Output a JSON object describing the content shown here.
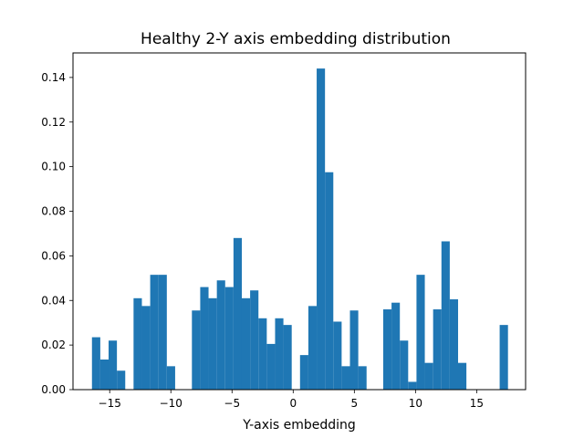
{
  "chart_data": {
    "type": "bar",
    "title": "Healthy 2-Y axis embedding distribution",
    "xlabel": "Y-axis embedding",
    "ylabel": "",
    "xlim": [
      -18.0,
      19.0
    ],
    "ylim": [
      0,
      0.151
    ],
    "xticks": [
      -15,
      -10,
      -5,
      0,
      5,
      10,
      15
    ],
    "xtick_labels": [
      "−15",
      "−10",
      "−5",
      "0",
      "5",
      "10",
      "15"
    ],
    "yticks": [
      0.0,
      0.02,
      0.04,
      0.06,
      0.08,
      0.1,
      0.12,
      0.14
    ],
    "ytick_labels": [
      "0.00",
      "0.02",
      "0.04",
      "0.06",
      "0.08",
      "0.10",
      "0.12",
      "0.14"
    ],
    "grid": false,
    "bar_color": "#1f77b4",
    "bin_width": 0.68,
    "bins": [
      {
        "x0": -16.45,
        "value": 0.0235
      },
      {
        "x0": -15.77,
        "value": 0.0135
      },
      {
        "x0": -15.09,
        "value": 0.022
      },
      {
        "x0": -14.41,
        "value": 0.0085
      },
      {
        "x0": -13.05,
        "value": 0.041
      },
      {
        "x0": -12.37,
        "value": 0.0375
      },
      {
        "x0": -11.69,
        "value": 0.0515
      },
      {
        "x0": -11.01,
        "value": 0.0515
      },
      {
        "x0": -10.33,
        "value": 0.0105
      },
      {
        "x0": -8.28,
        "value": 0.0355
      },
      {
        "x0": -7.6,
        "value": 0.046
      },
      {
        "x0": -6.92,
        "value": 0.041
      },
      {
        "x0": -6.24,
        "value": 0.049
      },
      {
        "x0": -5.56,
        "value": 0.046
      },
      {
        "x0": -4.88,
        "value": 0.068
      },
      {
        "x0": -4.2,
        "value": 0.041
      },
      {
        "x0": -3.52,
        "value": 0.0445
      },
      {
        "x0": -2.84,
        "value": 0.032
      },
      {
        "x0": -2.16,
        "value": 0.0205
      },
      {
        "x0": -1.48,
        "value": 0.032
      },
      {
        "x0": -0.8,
        "value": 0.029
      },
      {
        "x0": 0.56,
        "value": 0.0155
      },
      {
        "x0": 1.24,
        "value": 0.0375
      },
      {
        "x0": 1.92,
        "value": 0.144
      },
      {
        "x0": 2.6,
        "value": 0.0975
      },
      {
        "x0": 3.28,
        "value": 0.0305
      },
      {
        "x0": 3.96,
        "value": 0.0105
      },
      {
        "x0": 4.64,
        "value": 0.0355
      },
      {
        "x0": 5.32,
        "value": 0.0105
      },
      {
        "x0": 7.36,
        "value": 0.036
      },
      {
        "x0": 8.04,
        "value": 0.039
      },
      {
        "x0": 8.72,
        "value": 0.022
      },
      {
        "x0": 9.4,
        "value": 0.0035
      },
      {
        "x0": 10.08,
        "value": 0.0515
      },
      {
        "x0": 10.76,
        "value": 0.012
      },
      {
        "x0": 11.44,
        "value": 0.036
      },
      {
        "x0": 12.12,
        "value": 0.0665
      },
      {
        "x0": 12.8,
        "value": 0.0405
      },
      {
        "x0": 13.48,
        "value": 0.012
      },
      {
        "x0": 16.88,
        "value": 0.029
      }
    ]
  }
}
